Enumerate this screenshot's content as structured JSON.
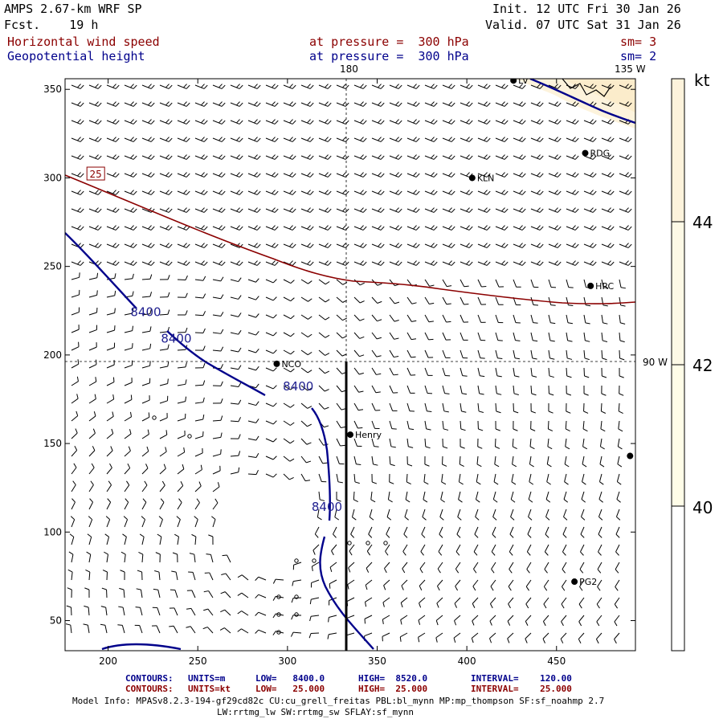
{
  "header": {
    "model": "AMPS 2.67-km WRF SP",
    "init": "Init. 12 UTC Fri 30 Jan 26",
    "fcst": "Fcst.    19 h",
    "valid": "Valid. 07 UTC Sat 31 Jan 26"
  },
  "fields": [
    {
      "name": "Horizontal wind speed",
      "level": "at pressure =  300 hPa",
      "smooth": "sm= 3",
      "color": "#8b0000"
    },
    {
      "name": "Geopotential height",
      "level": "at pressure =  300 hPa",
      "smooth": "sm= 2",
      "color": "#00008b"
    }
  ],
  "map": {
    "xticks": [
      200,
      250,
      300,
      350,
      400,
      450
    ],
    "yticks": [
      50,
      100,
      150,
      200,
      250,
      300,
      350
    ],
    "xlim": [
      176,
      494
    ],
    "ylim": [
      33,
      356
    ],
    "meridian_labels": {
      "top_180": "180",
      "top_135w": "135 W",
      "right_90w": "90 W"
    },
    "stations": [
      {
        "name": "LV",
        "x": 426,
        "y": 355
      },
      {
        "name": "RDG",
        "x": 466,
        "y": 314
      },
      {
        "name": "KLN",
        "x": 403,
        "y": 300
      },
      {
        "name": "HRC",
        "x": 469,
        "y": 239
      },
      {
        "name": "NCO",
        "x": 294,
        "y": 195
      },
      {
        "name": "Henry",
        "x": 335,
        "y": 155
      },
      {
        "name": "",
        "x": 491,
        "y": 143
      },
      {
        "name": "PG2",
        "x": 460,
        "y": 72
      }
    ],
    "cross_section": {
      "x": 335,
      "y_start": 33,
      "y_end": 195
    },
    "height_contours": {
      "level_label": "8400",
      "color": "#00008b",
      "labels": [
        {
          "x": 221,
          "y": 222
        },
        {
          "x": 238,
          "y": 207
        },
        {
          "x": 306,
          "y": 180
        },
        {
          "x": 322,
          "y": 112
        }
      ]
    },
    "speed_contours": {
      "level_label": "25",
      "color": "#8b0000",
      "label": {
        "x": 194,
        "y": 302
      }
    }
  },
  "colorbar": {
    "unit": "kt",
    "ticks": [
      "44",
      "42",
      "40"
    ],
    "colors": [
      "#fdf3dc",
      "#fdf9e6",
      "#fffde8",
      "#ffffff"
    ]
  },
  "footer": {
    "contours1": {
      "label": "CONTOURS:",
      "units": "UNITS=m",
      "low": "LOW=   8400.0",
      "high": "HIGH=  8520.0",
      "interval": "INTERVAL=    120.00",
      "color": "#00008b"
    },
    "contours2": {
      "label": "CONTOURS:",
      "units": "UNITS=kt",
      "low": "LOW=   25.000",
      "high": "HIGH=  25.000",
      "interval": "INTERVAL=    25.000",
      "color": "#8b0000"
    },
    "model_info": "Model Info: MPASv8.2.3-194-gf29cd82c CU:cu_grell_freitas PBL:bl_mynn MP:mp_thompson SF:sf_noahmp 2.7",
    "model_info2": "LW:rrtmg_lw SW:rrtmg_sw SFLAY:sf_mynn"
  }
}
